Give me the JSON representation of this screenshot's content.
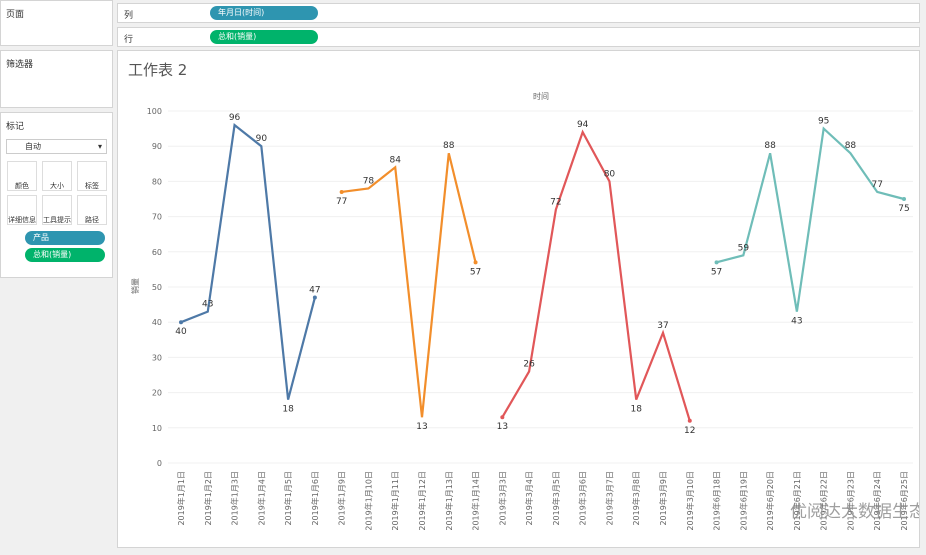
{
  "ui": {
    "pages": "页面",
    "columns_label": "列",
    "columns_pill": "年月日(时间)",
    "rows_label": "行",
    "rows_pill": "总和(销量)",
    "filters": "筛选器",
    "marks": "标记",
    "mark_type": "自动",
    "mark_buttons": [
      "颜色",
      "大小",
      "标签",
      "详细信息",
      "工具提示",
      "路径"
    ],
    "mark_pills": [
      "产品",
      "总和(销量)"
    ],
    "sheet_title": "工作表 2",
    "watermark": "优阅达大数据生态"
  },
  "chart_data": {
    "type": "line",
    "title": "时间",
    "y_label": "销量",
    "categories": [
      "2019年1月1日",
      "2019年1月2日",
      "2019年1月3日",
      "2019年1月4日",
      "2019年1月5日",
      "2019年1月6日",
      "2019年1月9日",
      "2019年1月10日",
      "2019年1月11日",
      "2019年1月12日",
      "2019年1月13日",
      "2019年1月14日",
      "2019年3月3日",
      "2019年3月4日",
      "2019年3月5日",
      "2019年3月6日",
      "2019年3月7日",
      "2019年3月8日",
      "2019年3月9日",
      "2019年3月10日",
      "2019年6月18日",
      "2019年6月19日",
      "2019年6月20日",
      "2019年6月21日",
      "2019年6月22日",
      "2019年6月23日",
      "2019年6月24日",
      "2019年6月25日"
    ],
    "series": [
      {
        "color": "#4e79a7",
        "values": [
          40,
          43,
          96,
          90,
          18,
          47,
          null,
          null,
          null,
          null,
          null,
          null,
          null,
          null,
          null,
          null,
          null,
          null,
          null,
          null,
          null,
          null,
          null,
          null,
          null,
          null,
          null,
          null
        ]
      },
      {
        "color": "#f28e2b",
        "values": [
          null,
          null,
          null,
          null,
          null,
          null,
          77,
          78,
          84,
          13,
          88,
          57,
          null,
          null,
          null,
          null,
          null,
          null,
          null,
          null,
          null,
          null,
          null,
          null,
          null,
          null,
          null,
          null
        ]
      },
      {
        "color": "#e15759",
        "values": [
          null,
          null,
          null,
          null,
          null,
          null,
          null,
          null,
          null,
          null,
          null,
          null,
          13,
          26,
          72,
          94,
          80,
          18,
          37,
          12,
          null,
          null,
          null,
          null,
          null,
          null,
          null,
          null
        ]
      },
      {
        "color": "#6fbdb8",
        "values": [
          null,
          null,
          null,
          null,
          null,
          null,
          null,
          null,
          null,
          null,
          null,
          null,
          null,
          null,
          null,
          null,
          null,
          null,
          null,
          null,
          57,
          59,
          88,
          43,
          95,
          88,
          77,
          75
        ]
      }
    ],
    "ylim": [
      0,
      100
    ],
    "yticks": [
      0,
      10,
      20,
      30,
      40,
      50,
      60,
      70,
      80,
      90,
      100
    ],
    "grid": true
  }
}
